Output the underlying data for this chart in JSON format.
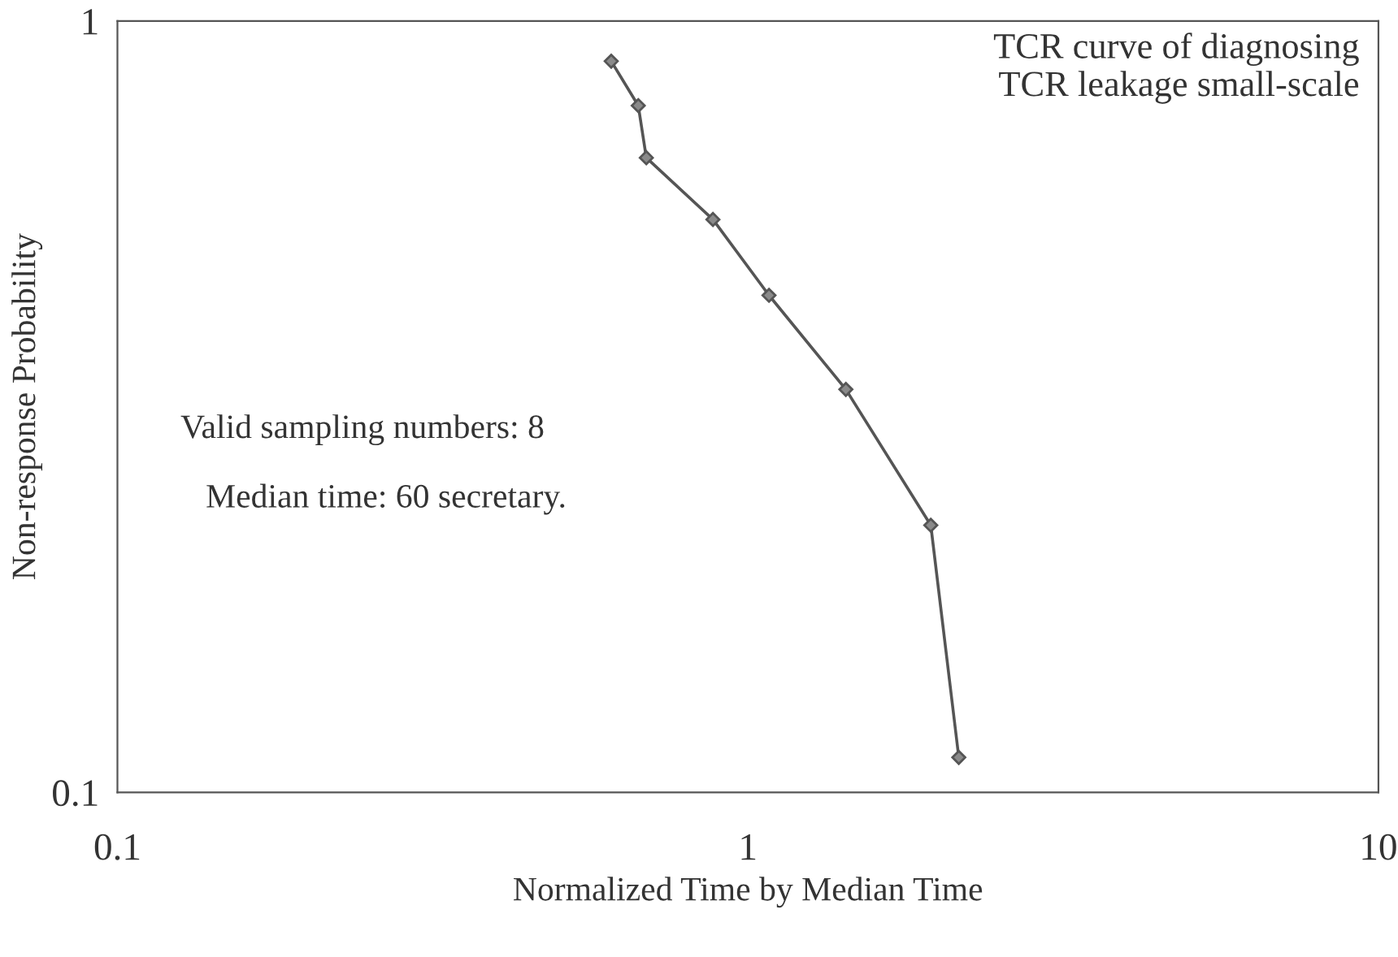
{
  "chart_data": {
    "type": "line",
    "xlabel": "Normalized Time by Median Time",
    "ylabel": "Non-response Probability",
    "x": [
      0.607,
      0.67,
      0.69,
      0.88,
      1.08,
      1.43,
      1.95,
      2.16
    ],
    "series": [
      {
        "color": "#555555",
        "values": [
          0.887,
          0.777,
          0.665,
          0.553,
          0.441,
          0.333,
          0.222,
          0.111
        ]
      }
    ],
    "log": "xy",
    "xlim": [
      0.1,
      10
    ],
    "ylim": [
      0.1,
      1
    ],
    "xticks": [
      0.1,
      1,
      10
    ],
    "yticks": [
      0.1,
      1
    ],
    "marker": "diamond",
    "line_style": "solid",
    "grid": false,
    "legend": false,
    "annotations": [
      "TCR curve of diagnosing\nTCR leakage small-scale",
      "Valid sampling numbers: 8",
      "Median time: 60 secretary."
    ]
  }
}
